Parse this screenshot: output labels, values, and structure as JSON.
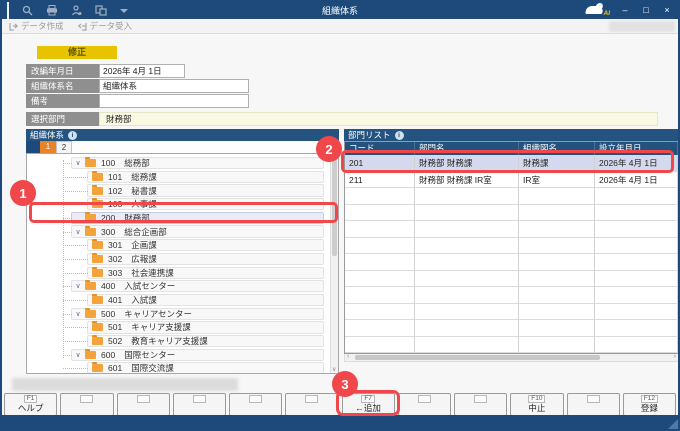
{
  "window": {
    "title": "組織体系",
    "logo_text": "AI",
    "controls": {
      "minimize": "–",
      "maximize": "□",
      "close": "×"
    },
    "titlebar_icons": [
      "window",
      "search",
      "print",
      "user",
      "org",
      "dropdown"
    ]
  },
  "menubar": {
    "buttons": [
      {
        "label": "データ作成",
        "icon": "export-icon"
      },
      {
        "label": "データ受入",
        "icon": "import-icon"
      }
    ]
  },
  "mode_badge": "修正",
  "form": {
    "fields": [
      {
        "label": "改編年月日",
        "value": "2026年 4月 1日"
      },
      {
        "label": "組織体系名",
        "value": "組織体系"
      },
      {
        "label": "備考",
        "value": ""
      }
    ],
    "selected_dept": {
      "label": "選択部門",
      "value": "財務部"
    }
  },
  "tree_panel": {
    "title": "組織体系",
    "tabs": [
      "1",
      "2"
    ],
    "active_tab": "1",
    "items": [
      {
        "code": "100",
        "name": "総務部",
        "level": 0,
        "expanded": true
      },
      {
        "code": "101",
        "name": "総務課",
        "level": 1
      },
      {
        "code": "102",
        "name": "秘書課",
        "level": 1
      },
      {
        "code": "103",
        "name": "人事課",
        "level": 1
      },
      {
        "code": "200",
        "name": "財務部",
        "level": 0,
        "selected": true
      },
      {
        "code": "300",
        "name": "総合企画部",
        "level": 0,
        "expanded": true
      },
      {
        "code": "301",
        "name": "企画課",
        "level": 1
      },
      {
        "code": "302",
        "name": "広報課",
        "level": 1
      },
      {
        "code": "303",
        "name": "社会連携課",
        "level": 1
      },
      {
        "code": "400",
        "name": "入試センター",
        "level": 0,
        "expanded": true
      },
      {
        "code": "401",
        "name": "入試課",
        "level": 1
      },
      {
        "code": "500",
        "name": "キャリアセンター",
        "level": 0,
        "expanded": true
      },
      {
        "code": "501",
        "name": "キャリア支援課",
        "level": 1
      },
      {
        "code": "502",
        "name": "教育キャリア支援課",
        "level": 1
      },
      {
        "code": "600",
        "name": "国際センター",
        "level": 0,
        "expanded": true
      },
      {
        "code": "601",
        "name": "国際交流課",
        "level": 1
      }
    ]
  },
  "dept_list": {
    "title": "部門リスト",
    "columns": [
      "コード",
      "部門名",
      "組織図名",
      "設立年月日"
    ],
    "rows": [
      {
        "code": "201",
        "dept": "財務部 財務課",
        "org": "財務課",
        "date": "2026年 4月 1日",
        "selected": true
      },
      {
        "code": "211",
        "dept": "財務部 財務課 IR室",
        "org": "IR室",
        "date": "2026年 4月 1日",
        "selected": false
      }
    ],
    "empty_row_count": 10
  },
  "function_keys": [
    {
      "key": "F1",
      "label": "ヘルプ"
    },
    {
      "key": "",
      "label": ""
    },
    {
      "key": "",
      "label": ""
    },
    {
      "key": "",
      "label": ""
    },
    {
      "key": "",
      "label": ""
    },
    {
      "key": "",
      "label": ""
    },
    {
      "key": "F7",
      "label": "←追加"
    },
    {
      "key": "",
      "label": ""
    },
    {
      "key": "",
      "label": ""
    },
    {
      "key": "F10",
      "label": "中止"
    },
    {
      "key": "",
      "label": ""
    },
    {
      "key": "F12",
      "label": "登録"
    }
  ],
  "annotations": [
    {
      "number": "1"
    },
    {
      "number": "2"
    },
    {
      "number": "3"
    }
  ],
  "colors": {
    "titlebar": "#1d4a7a",
    "panel_header": "#24537f",
    "tab_active": "#e8832a",
    "badge": "#e7c301",
    "selected_row": "#d4d9ee",
    "annotation_red": "#f0474b",
    "selected_dept_bg": "#fafae3",
    "folder": "#f3a33b"
  }
}
